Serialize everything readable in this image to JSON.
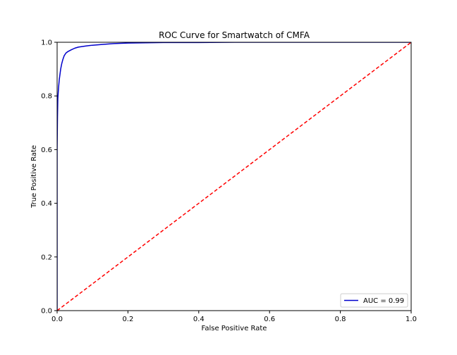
{
  "chart_data": {
    "type": "line",
    "title": "ROC Curve for Smartwatch of CMFA",
    "xlabel": "False Positive Rate",
    "ylabel": "True Positive Rate",
    "xlim": [
      0.0,
      1.0
    ],
    "ylim": [
      0.0,
      1.0
    ],
    "xticks": [
      "0.0",
      "0.2",
      "0.4",
      "0.6",
      "0.8",
      "1.0"
    ],
    "yticks": [
      "0.0",
      "0.2",
      "0.4",
      "0.6",
      "0.8",
      "1.0"
    ],
    "grid": false,
    "legend": {
      "placement": "lower-right",
      "entries": [
        "AUC = 0.99"
      ]
    },
    "series": [
      {
        "name": "AUC = 0.99",
        "color": "#0000cc",
        "style": "solid",
        "x": [
          0.0,
          0.0,
          0.001,
          0.002,
          0.004,
          0.006,
          0.008,
          0.01,
          0.013,
          0.016,
          0.02,
          0.025,
          0.03,
          0.04,
          0.05,
          0.06,
          0.08,
          0.1,
          0.13,
          0.16,
          0.2,
          0.25,
          0.3,
          0.4,
          0.5,
          0.6,
          0.7,
          0.8,
          0.9,
          1.0
        ],
        "y": [
          0.0,
          0.6,
          0.72,
          0.79,
          0.83,
          0.86,
          0.88,
          0.9,
          0.92,
          0.935,
          0.95,
          0.96,
          0.965,
          0.972,
          0.978,
          0.982,
          0.986,
          0.989,
          0.992,
          0.995,
          0.997,
          0.998,
          0.999,
          0.999,
          1.0,
          1.0,
          1.0,
          1.0,
          1.0,
          1.0
        ]
      },
      {
        "name": "",
        "color": "#ff0000",
        "style": "dashed",
        "x": [
          0.0,
          1.0
        ],
        "y": [
          0.0,
          1.0
        ]
      }
    ]
  }
}
